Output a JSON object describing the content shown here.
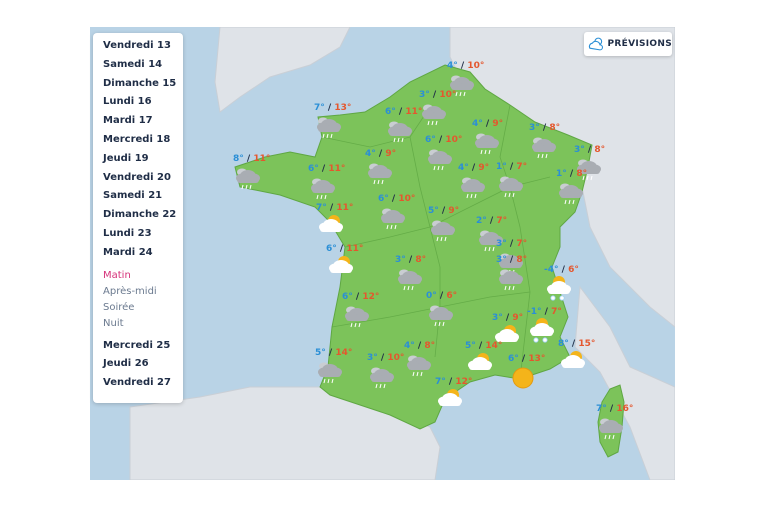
{
  "days_top": [
    "Vendredi 13",
    "Samedi 14",
    "Dimanche 15",
    "Lundi 16",
    "Mardi 17",
    "Mercredi 18",
    "Jeudi 19",
    "Vendredi 20",
    "Samedi 21",
    "Dimanche 22",
    "Lundi 23",
    "Mardi 24"
  ],
  "periods": [
    "Matin",
    "Après-midi",
    "Soirée",
    "Nuit"
  ],
  "days_bottom": [
    "Mercredi 25",
    "Jeudi 26",
    "Vendredi 27"
  ],
  "previsions_label": "PRÉVISIONS",
  "colors": {
    "land": "#7cc35a",
    "sea": "#b9d3e6",
    "tmin": "#2b8fd6",
    "tmax": "#e4572e",
    "active": "#d6337b"
  },
  "cities": [
    {
      "min": "4°",
      "max": "10°",
      "icon": "rain-cloud-icon"
    },
    {
      "min": "7°",
      "max": "13°",
      "icon": "rain-cloud-icon"
    },
    {
      "min": "6°",
      "max": "11°",
      "icon": "rain-cloud-icon"
    },
    {
      "min": "3°",
      "max": "10°",
      "icon": "rain-cloud-icon"
    },
    {
      "min": "4°",
      "max": "9°",
      "icon": "rain-cloud-icon"
    },
    {
      "min": "3°",
      "max": "8°",
      "icon": "rain-cloud-icon"
    },
    {
      "min": "3°",
      "max": "8°",
      "icon": "rain-cloud-icon"
    },
    {
      "min": "8°",
      "max": "11°",
      "icon": "rain-cloud-icon"
    },
    {
      "min": "6°",
      "max": "11°",
      "icon": "rain-cloud-icon"
    },
    {
      "min": "4°",
      "max": "9°",
      "icon": "rain-cloud-icon"
    },
    {
      "min": "6°",
      "max": "10°",
      "icon": "rain-cloud-icon"
    },
    {
      "min": "4°",
      "max": "9°",
      "icon": "rain-cloud-icon"
    },
    {
      "min": "1°",
      "max": "7°",
      "icon": "rain-cloud-icon"
    },
    {
      "min": "1°",
      "max": "8°",
      "icon": "rain-cloud-icon"
    },
    {
      "min": "7°",
      "max": "11°",
      "icon": "sun-cloud-icon"
    },
    {
      "min": "6°",
      "max": "10°",
      "icon": "rain-cloud-icon"
    },
    {
      "min": "5°",
      "max": "9°",
      "icon": "rain-cloud-icon"
    },
    {
      "min": "2°",
      "max": "7°",
      "icon": "rain-cloud-icon"
    },
    {
      "min": "3°",
      "max": "7°",
      "icon": "rain-cloud-icon"
    },
    {
      "min": "6°",
      "max": "11°",
      "icon": "sun-cloud-icon"
    },
    {
      "min": "3°",
      "max": "8°",
      "icon": "rain-cloud-icon"
    },
    {
      "min": "3°",
      "max": "8°",
      "icon": "rain-cloud-icon"
    },
    {
      "min": "-4°",
      "max": "6°",
      "icon": "sun-snow-icon"
    },
    {
      "min": "6°",
      "max": "12°",
      "icon": "rain-cloud-icon"
    },
    {
      "min": "0°",
      "max": "6°",
      "icon": "rain-cloud-icon"
    },
    {
      "min": "3°",
      "max": "9°",
      "icon": "sun-cloud-icon"
    },
    {
      "min": "-1°",
      "max": "7°",
      "icon": "sun-snow-icon"
    },
    {
      "min": "4°",
      "max": "8°",
      "icon": "rain-cloud-icon"
    },
    {
      "min": "5°",
      "max": "14°",
      "icon": "sun-cloud-icon"
    },
    {
      "min": "8°",
      "max": "15°",
      "icon": "sun-cloud-icon"
    },
    {
      "min": "5°",
      "max": "14°",
      "icon": "rain-cloud-icon"
    },
    {
      "min": "3°",
      "max": "10°",
      "icon": "rain-cloud-icon"
    },
    {
      "min": "6°",
      "max": "13°",
      "icon": "sun-icon"
    },
    {
      "min": "7°",
      "max": "12°",
      "icon": "sun-cloud-icon"
    },
    {
      "min": "7°",
      "max": "16°",
      "icon": "rain-cloud-icon"
    }
  ]
}
